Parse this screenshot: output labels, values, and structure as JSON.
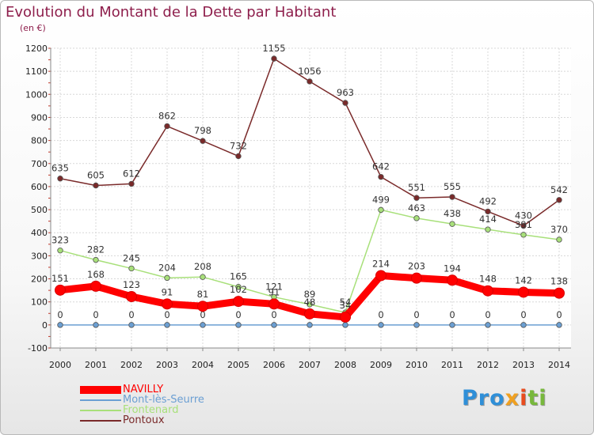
{
  "chart_data": {
    "type": "line",
    "title": "Evolution du Montant de la Dette par Habitant",
    "subtitle": "(en €)",
    "x": [
      "2000",
      "2001",
      "2002",
      "2003",
      "2004",
      "2005",
      "2006",
      "2007",
      "2008",
      "2009",
      "2010",
      "2011",
      "2012",
      "2013",
      "2014"
    ],
    "ylim": [
      -100,
      1200
    ],
    "yticks": [
      -100,
      0,
      100,
      200,
      300,
      400,
      500,
      600,
      700,
      800,
      900,
      1000,
      1100,
      1200
    ],
    "grid": true,
    "legend_position": "bottom-left",
    "series": [
      {
        "name": "NAVILLY",
        "color": "#ff0000",
        "values": [
          151,
          168,
          123,
          91,
          81,
          102,
          91,
          48,
          34,
          214,
          203,
          194,
          148,
          142,
          138
        ]
      },
      {
        "name": "Mont-lès-Seurre",
        "color": "#6b9fd3",
        "values": [
          0,
          0,
          0,
          0,
          0,
          0,
          0,
          0,
          0,
          0,
          0,
          0,
          0,
          0,
          0
        ]
      },
      {
        "name": "Frontenard",
        "color": "#a8e07a",
        "values": [
          323,
          282,
          245,
          204,
          208,
          165,
          121,
          89,
          54,
          499,
          463,
          438,
          414,
          391,
          370
        ]
      },
      {
        "name": "Pontoux",
        "color": "#7a2a2a",
        "values": [
          635,
          605,
          612,
          862,
          798,
          732,
          1155,
          1056,
          963,
          642,
          551,
          555,
          492,
          430,
          542
        ]
      }
    ]
  },
  "logo": {
    "p1": "Pro",
    "p2": "x",
    "p3": "i",
    "p4": "ti"
  }
}
